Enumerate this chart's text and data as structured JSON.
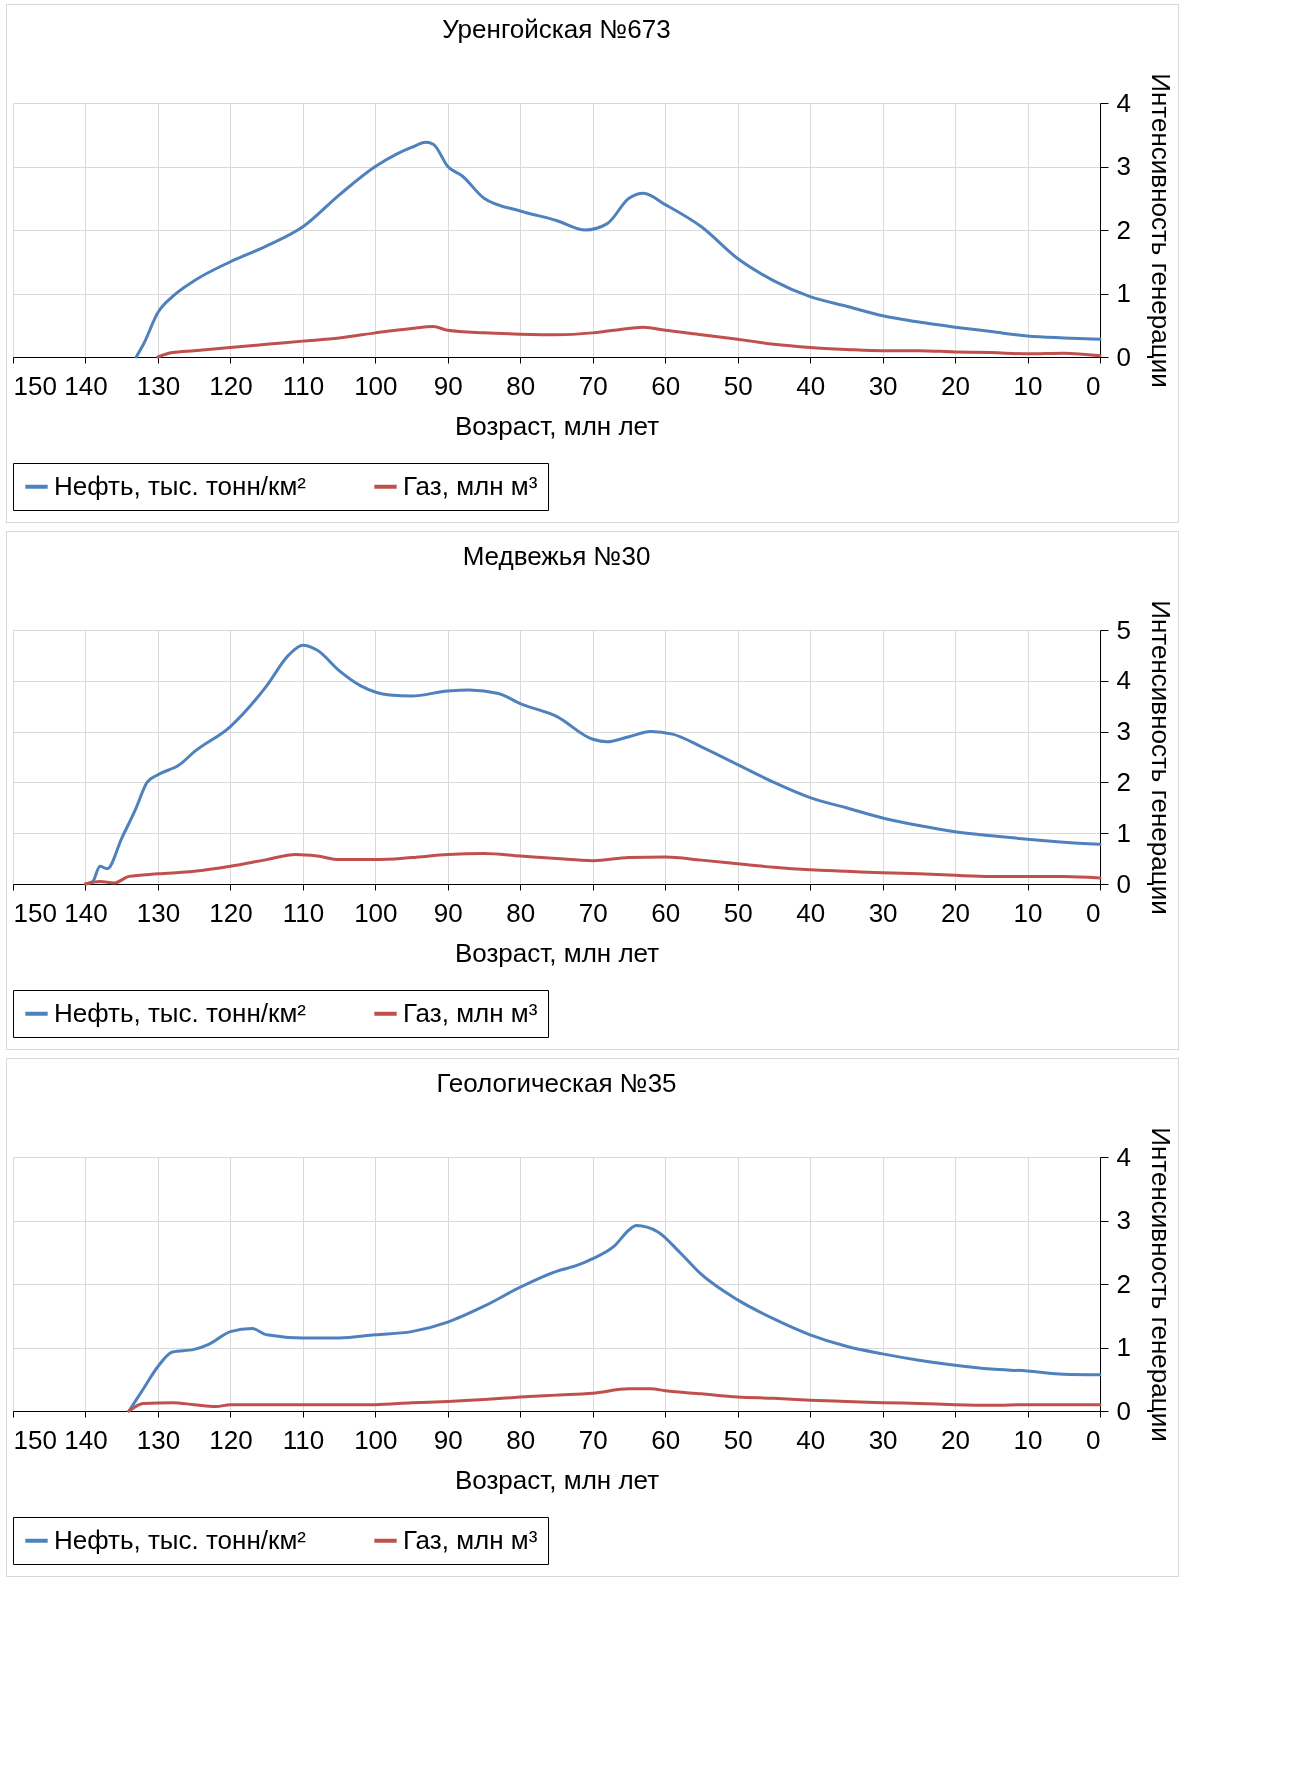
{
  "chart_data": [
    {
      "type": "line",
      "title": "Уренгойская №673",
      "xlabel": "Возраст, млн лет",
      "ylabel": "Интенсивность генерации",
      "xlim": [
        150,
        0
      ],
      "xticks": [
        150,
        140,
        130,
        120,
        110,
        100,
        90,
        80,
        70,
        60,
        50,
        40,
        30,
        20,
        10,
        0
      ],
      "ylim": [
        0,
        4
      ],
      "yticks": [
        0,
        1,
        2,
        3,
        4
      ],
      "grid": true,
      "legend": "bottom",
      "line_style": "solid",
      "series": [
        {
          "name": "Нефть, тыс. тонн/км²",
          "color": "#4f81bd",
          "x": [
            133,
            132,
            130,
            128,
            125,
            120,
            115,
            110,
            105,
            100,
            97,
            95,
            93,
            92,
            90,
            88,
            85,
            80,
            75,
            71,
            68,
            65,
            63,
            60,
            55,
            50,
            45,
            40,
            35,
            30,
            25,
            20,
            15,
            10,
            5,
            0
          ],
          "values": [
            0,
            0.2,
            0.7,
            0.95,
            1.2,
            1.5,
            1.75,
            2.05,
            2.55,
            3.0,
            3.2,
            3.3,
            3.38,
            3.35,
            3.0,
            2.85,
            2.5,
            2.3,
            2.15,
            2.0,
            2.1,
            2.5,
            2.58,
            2.4,
            2.05,
            1.55,
            1.2,
            0.95,
            0.8,
            0.65,
            0.55,
            0.47,
            0.4,
            0.33,
            0.3,
            0.28
          ]
        },
        {
          "name": "Газ, млн м³",
          "color": "#c0504d",
          "x": [
            130,
            128,
            125,
            120,
            115,
            110,
            105,
            100,
            95,
            92,
            90,
            85,
            80,
            75,
            70,
            65,
            63,
            60,
            55,
            50,
            45,
            40,
            35,
            30,
            25,
            20,
            15,
            10,
            5,
            0
          ],
          "values": [
            0,
            0.07,
            0.1,
            0.15,
            0.2,
            0.25,
            0.3,
            0.38,
            0.45,
            0.48,
            0.42,
            0.38,
            0.36,
            0.35,
            0.38,
            0.45,
            0.47,
            0.42,
            0.35,
            0.28,
            0.2,
            0.15,
            0.12,
            0.1,
            0.1,
            0.08,
            0.07,
            0.05,
            0.06,
            0.02
          ]
        }
      ]
    },
    {
      "type": "line",
      "title": "Медвежья №30",
      "xlabel": "Возраст, млн лет",
      "ylabel": "Интенсивность генерации",
      "xlim": [
        150,
        0
      ],
      "xticks": [
        150,
        140,
        130,
        120,
        110,
        100,
        90,
        80,
        70,
        60,
        50,
        40,
        30,
        20,
        10,
        0
      ],
      "ylim": [
        0,
        5
      ],
      "yticks": [
        0,
        1,
        2,
        3,
        4,
        5
      ],
      "grid": true,
      "legend": "bottom",
      "line_style": "solid",
      "series": [
        {
          "name": "Нефть, тыс. тонн/км²",
          "color": "#4f81bd",
          "x": [
            140,
            139,
            138,
            137,
            135,
            133,
            131.5,
            130,
            127,
            125,
            120,
            115,
            112,
            110,
            108,
            105,
            102,
            98,
            95,
            90,
            87,
            83,
            80,
            75,
            70,
            68,
            65,
            62,
            59,
            55,
            50,
            45,
            40,
            35,
            30,
            25,
            20,
            15,
            10,
            5,
            0
          ],
          "values": [
            0,
            0.05,
            0.35,
            0.3,
            0.9,
            1.5,
            2.0,
            2.15,
            2.35,
            2.6,
            3.1,
            3.9,
            4.5,
            4.7,
            4.6,
            4.2,
            3.9,
            3.72,
            3.7,
            3.8,
            3.82,
            3.75,
            3.55,
            3.3,
            2.85,
            2.8,
            2.9,
            3.0,
            2.95,
            2.7,
            2.35,
            2.0,
            1.7,
            1.5,
            1.3,
            1.15,
            1.03,
            0.95,
            0.88,
            0.82,
            0.78
          ]
        },
        {
          "name": "Газ, млн м³",
          "color": "#c0504d",
          "x": [
            140,
            138,
            136,
            134,
            130,
            125,
            120,
            115,
            111,
            108,
            105,
            100,
            95,
            90,
            85,
            80,
            75,
            70,
            65,
            60,
            55,
            50,
            45,
            40,
            35,
            30,
            25,
            20,
            15,
            10,
            5,
            0
          ],
          "values": [
            0,
            0.05,
            0.02,
            0.15,
            0.2,
            0.25,
            0.35,
            0.48,
            0.58,
            0.55,
            0.48,
            0.48,
            0.52,
            0.58,
            0.6,
            0.55,
            0.5,
            0.46,
            0.52,
            0.53,
            0.47,
            0.4,
            0.33,
            0.28,
            0.25,
            0.22,
            0.2,
            0.17,
            0.15,
            0.15,
            0.15,
            0.12
          ]
        }
      ]
    },
    {
      "type": "line",
      "title": "Геологическая №35",
      "xlabel": "Возраст, млн лет",
      "ylabel": "Интенсивность генерации",
      "xlim": [
        150,
        0
      ],
      "xticks": [
        150,
        140,
        130,
        120,
        110,
        100,
        90,
        80,
        70,
        60,
        50,
        40,
        30,
        20,
        10,
        0
      ],
      "ylim": [
        0,
        4
      ],
      "yticks": [
        0,
        1,
        2,
        3,
        4
      ],
      "grid": true,
      "legend": "bottom",
      "line_style": "solid",
      "series": [
        {
          "name": "Нефть, тыс. тонн/км²",
          "color": "#4f81bd",
          "x": [
            134,
            132,
            130,
            128,
            125,
            123,
            120,
            117,
            115,
            110,
            105,
            100,
            95,
            90,
            85,
            80,
            75,
            72,
            70,
            67,
            65,
            64,
            61,
            58,
            55,
            50,
            45,
            40,
            35,
            30,
            25,
            20,
            15,
            10,
            5,
            0
          ],
          "values": [
            0,
            0.35,
            0.7,
            0.93,
            0.97,
            1.05,
            1.25,
            1.3,
            1.2,
            1.15,
            1.15,
            1.2,
            1.25,
            1.4,
            1.65,
            1.95,
            2.2,
            2.3,
            2.4,
            2.6,
            2.85,
            2.92,
            2.82,
            2.5,
            2.15,
            1.75,
            1.45,
            1.2,
            1.02,
            0.9,
            0.8,
            0.72,
            0.66,
            0.63,
            0.58,
            0.57
          ]
        },
        {
          "name": "Газ, млн м³",
          "color": "#c0504d",
          "x": [
            134,
            132,
            128,
            125,
            122,
            120,
            115,
            110,
            100,
            95,
            90,
            85,
            80,
            75,
            70,
            65,
            62,
            60,
            55,
            50,
            45,
            40,
            35,
            30,
            25,
            20,
            15,
            10,
            5,
            0
          ],
          "values": [
            0,
            0.12,
            0.13,
            0.1,
            0.07,
            0.1,
            0.1,
            0.1,
            0.1,
            0.13,
            0.15,
            0.18,
            0.22,
            0.25,
            0.28,
            0.35,
            0.35,
            0.32,
            0.27,
            0.22,
            0.2,
            0.17,
            0.15,
            0.13,
            0.12,
            0.1,
            0.09,
            0.1,
            0.1,
            0.1
          ]
        }
      ]
    }
  ]
}
